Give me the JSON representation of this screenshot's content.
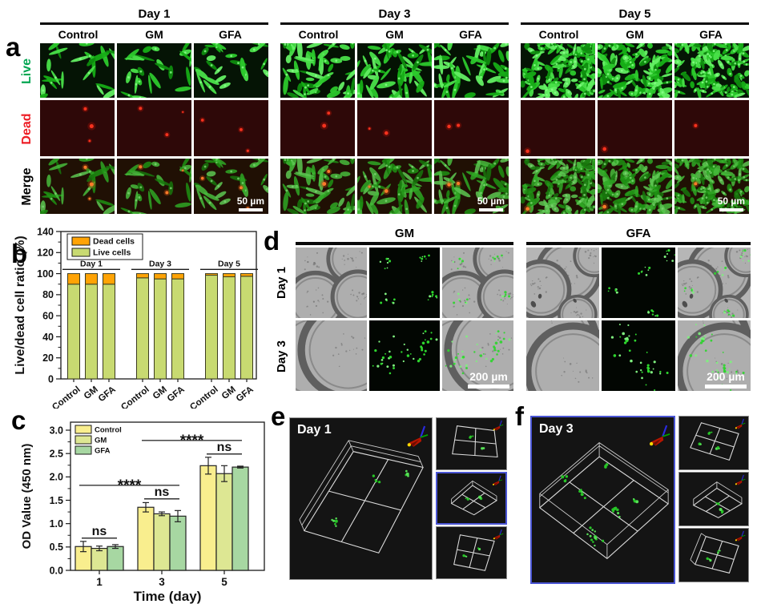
{
  "panel_a": {
    "label": "a",
    "row_labels": [
      {
        "text": "Live",
        "color": "#00a651"
      },
      {
        "text": "Dead",
        "color": "#ed1c24"
      },
      {
        "text": "Merge",
        "color": "#000000"
      }
    ],
    "column_labels": [
      "Control",
      "GM",
      "GFA"
    ],
    "day_groups": [
      "Day 1",
      "Day 3",
      "Day 5"
    ],
    "scale_bar_label": "50 µm"
  },
  "panel_b": {
    "label": "b"
  },
  "panel_c": {
    "label": "c"
  },
  "panel_d": {
    "label": "d",
    "group_labels": [
      "GM",
      "GFA"
    ],
    "row_labels": [
      "Day 1",
      "Day 3"
    ],
    "scale_bar_label": "200 µm"
  },
  "panel_e": {
    "label": "e",
    "title": "Day 1"
  },
  "panel_f": {
    "label": "f",
    "title": "Day 3"
  },
  "chart_data": [
    {
      "id": "live-dead-ratio",
      "panel": "b",
      "type": "bar",
      "stacked": true,
      "title": "",
      "xlabel": "",
      "ylabel": "Live/dead cell ratio (%)",
      "ylim": [
        0,
        140
      ],
      "yticks": [
        0,
        20,
        40,
        60,
        80,
        100,
        120,
        140
      ],
      "groups": [
        "Day 1",
        "Day 3",
        "Day 5"
      ],
      "categories": [
        "Control",
        "GM",
        "GFA"
      ],
      "series": [
        {
          "name": "Dead cells",
          "color": "#ffa305",
          "values": [
            [
              10,
              10,
              10
            ],
            [
              4,
              5,
              5
            ],
            [
              1.5,
              3,
              2.5
            ]
          ]
        },
        {
          "name": "Live cells",
          "color": "#c8da71",
          "values": [
            [
              90,
              90,
              90
            ],
            [
              96,
              95,
              95
            ],
            [
              98.5,
              97,
              97.5
            ]
          ]
        }
      ],
      "legend": [
        "Dead cells",
        "Live cells"
      ],
      "legend_position": "top-left",
      "grid": false
    },
    {
      "id": "od-value",
      "panel": "c",
      "type": "bar",
      "grouped": true,
      "title": "",
      "xlabel": "Time (day)",
      "ylabel": "OD Value (450 nm)",
      "ylim": [
        0.0,
        3.0
      ],
      "yticks": [
        0.0,
        0.5,
        1.0,
        1.5,
        2.0,
        2.5,
        3.0
      ],
      "categories": [
        "1",
        "3",
        "5"
      ],
      "series": [
        {
          "name": "Control",
          "color": "#f9ee8e",
          "values": [
            0.51,
            1.35,
            2.24
          ],
          "errors": [
            0.11,
            0.1,
            0.18
          ]
        },
        {
          "name": "GM",
          "color": "#dde793",
          "values": [
            0.47,
            1.21,
            2.07
          ],
          "errors": [
            0.05,
            0.04,
            0.17
          ]
        },
        {
          "name": "GFA",
          "color": "#a7d7a2",
          "values": [
            0.51,
            1.16,
            2.21
          ],
          "errors": [
            0.04,
            0.12,
            0.02
          ]
        }
      ],
      "annotations": [
        {
          "text": "ns",
          "kind": "bracket",
          "group": 0,
          "y": 0.69
        },
        {
          "text": "ns",
          "kind": "bracket",
          "group": 1,
          "y": 1.53
        },
        {
          "text": "ns",
          "kind": "bracket",
          "group": 2,
          "y": 2.49
        },
        {
          "text": "****",
          "kind": "span",
          "from": 0,
          "to": 1,
          "y": 1.82
        },
        {
          "text": "****",
          "kind": "span",
          "from": 1,
          "to": 2,
          "y": 2.78
        }
      ],
      "legend_position": "top-left",
      "grid": false
    }
  ]
}
